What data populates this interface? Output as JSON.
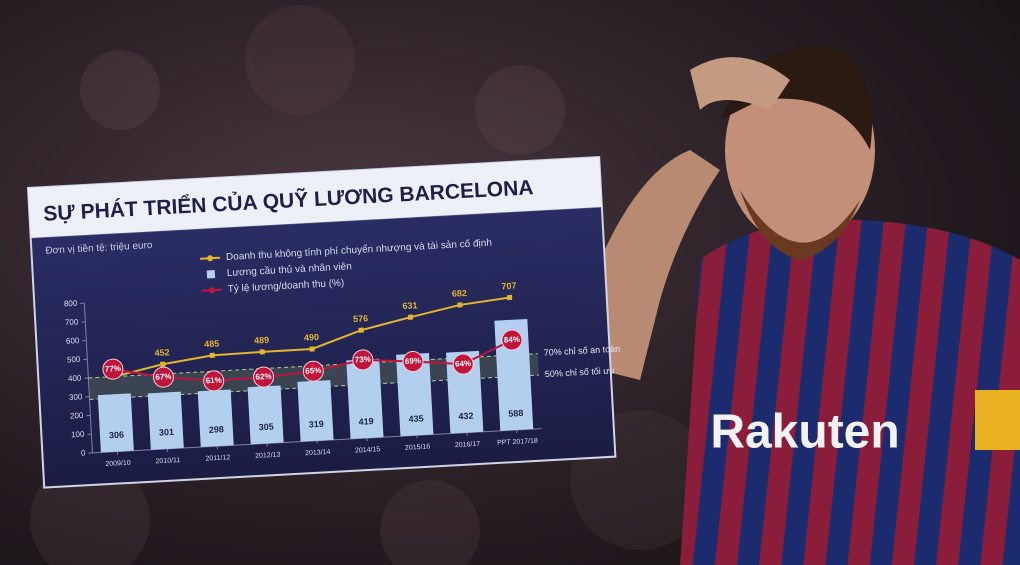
{
  "chart_data": {
    "type": "bar",
    "title": "SỰ PHÁT TRIỂN CỦA QUỸ LƯƠNG BARCELONA",
    "subtitle": "Đơn vị tiền tệ: triệu euro",
    "categories": [
      "2009/10",
      "2010/11",
      "2011/12",
      "2012/13",
      "2013/14",
      "2014/15",
      "2015/16",
      "2016/17",
      "PPT 2017/18"
    ],
    "series": [
      {
        "name": "Doanh thu không tính phí chuyển nhượng và tài sản cố định",
        "type": "line",
        "color": "#e2b52f",
        "values": [
          399,
          452,
          485,
          489,
          490,
          576,
          631,
          682,
          707
        ]
      },
      {
        "name": "Lương cầu thủ và nhân viên",
        "type": "bar",
        "color": "#b3cff0",
        "values": [
          306,
          301,
          298,
          305,
          319,
          419,
          435,
          432,
          588
        ]
      },
      {
        "name": "Tỷ lệ lương/doanh thu (%)",
        "type": "line",
        "axis": "y2",
        "color": "#c0143c",
        "values": [
          77,
          67,
          61,
          62,
          65,
          73,
          69,
          64,
          84
        ],
        "value_labels": [
          "77%",
          "67%",
          "61%",
          "62%",
          "65%",
          "73%",
          "69%",
          "64%",
          "84%"
        ]
      }
    ],
    "ylim": [
      0,
      800
    ],
    "yticks": [
      0,
      100,
      200,
      300,
      400,
      500,
      600,
      700,
      800
    ],
    "y2lim": [
      0,
      140
    ],
    "annotations": [
      {
        "text": "70% chỉ số an toàn",
        "value": 70
      },
      {
        "text": "50% chỉ số tối ưu",
        "value": 50
      }
    ],
    "grid": false
  },
  "photo": {
    "jersey_text": "Rakuten"
  }
}
